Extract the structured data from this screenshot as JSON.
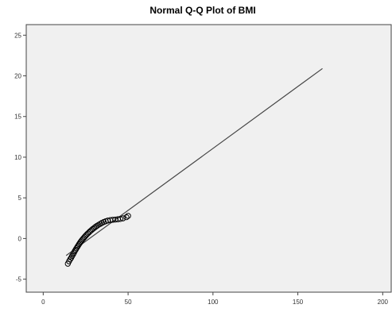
{
  "chart_data": {
    "type": "scatter",
    "title": "Normal Q-Q Plot of BMI",
    "xlabel": "",
    "ylabel": "",
    "xlim": [
      -10,
      205
    ],
    "ylim": [
      -6.6,
      26.3
    ],
    "x_ticks": [
      0,
      50,
      100,
      150,
      200
    ],
    "y_ticks": [
      -5,
      0,
      5,
      10,
      15,
      20,
      25
    ],
    "grid": false,
    "legend": "none",
    "colors": {
      "plot_background": "#f0f0f0",
      "frame": "#444444",
      "line": "#444444",
      "marker": "#000000"
    },
    "reference_line": {
      "x": [
        13.5,
        164.5
      ],
      "y": [
        -2.1,
        20.9
      ]
    },
    "series": [
      {
        "marker": "open-circle",
        "points": [
          [
            14.5,
            -3.1
          ],
          [
            15.2,
            -2.8
          ],
          [
            15.9,
            -2.55
          ],
          [
            16.5,
            -2.35
          ],
          [
            17.0,
            -2.15
          ],
          [
            17.6,
            -1.95
          ],
          [
            18.1,
            -1.75
          ],
          [
            18.6,
            -1.55
          ],
          [
            19.1,
            -1.38
          ],
          [
            19.6,
            -1.2
          ],
          [
            20.1,
            -1.03
          ],
          [
            20.6,
            -0.87
          ],
          [
            21.1,
            -0.7
          ],
          [
            21.6,
            -0.55
          ],
          [
            22.1,
            -0.4
          ],
          [
            22.6,
            -0.25
          ],
          [
            23.2,
            -0.1
          ],
          [
            23.8,
            0.05
          ],
          [
            24.4,
            0.2
          ],
          [
            25.0,
            0.34
          ],
          [
            25.6,
            0.48
          ],
          [
            26.3,
            0.62
          ],
          [
            27.0,
            0.76
          ],
          [
            27.7,
            0.9
          ],
          [
            28.4,
            1.03
          ],
          [
            29.2,
            1.17
          ],
          [
            30.0,
            1.3
          ],
          [
            30.8,
            1.43
          ],
          [
            31.7,
            1.56
          ],
          [
            32.6,
            1.68
          ],
          [
            33.6,
            1.8
          ],
          [
            34.6,
            1.92
          ],
          [
            35.7,
            2.03
          ],
          [
            36.8,
            2.12
          ],
          [
            38.0,
            2.2
          ],
          [
            39.5,
            2.26
          ],
          [
            41.0,
            2.3
          ],
          [
            42.5,
            2.33
          ],
          [
            44.0,
            2.37
          ],
          [
            45.5,
            2.4
          ],
          [
            47.0,
            2.48
          ],
          [
            49.0,
            2.62
          ],
          [
            50.0,
            2.78
          ]
        ]
      }
    ]
  }
}
